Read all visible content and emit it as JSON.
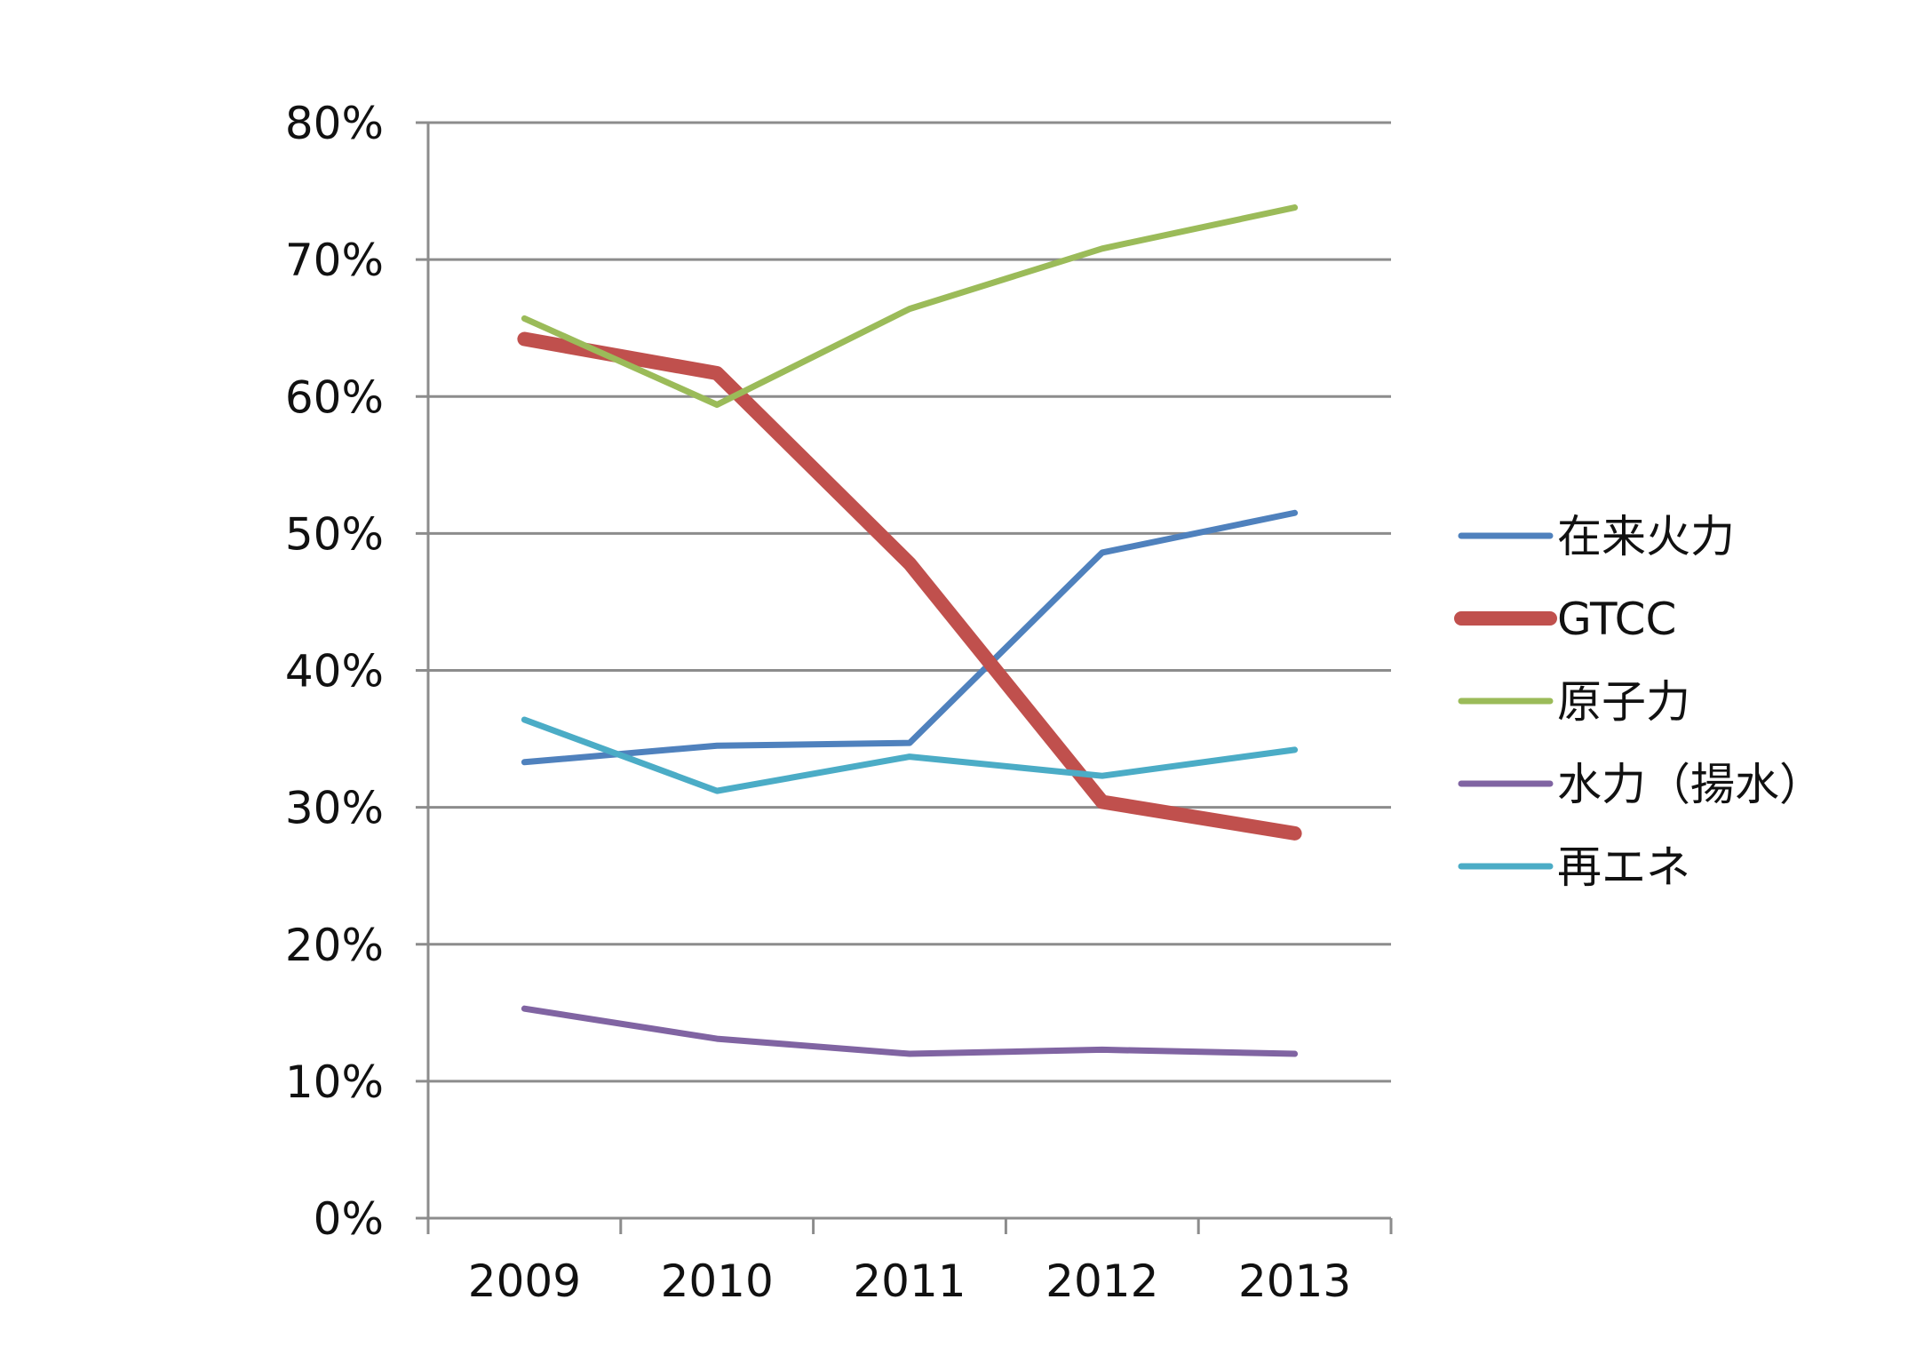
{
  "chart_data": {
    "type": "line",
    "categories": [
      "2009",
      "2010",
      "2011",
      "2012",
      "2013"
    ],
    "ylim": [
      0,
      80
    ],
    "yticks": [
      0,
      10,
      20,
      30,
      40,
      50,
      60,
      70,
      80
    ],
    "ytick_labels": [
      "0%",
      "10%",
      "20%",
      "30%",
      "40%",
      "50%",
      "60%",
      "70%",
      "80%"
    ],
    "grid": true,
    "legend_position": "right",
    "title": "",
    "xlabel": "",
    "ylabel": "",
    "series": [
      {
        "name": "在来火力",
        "color": "#4F81BD",
        "values": [
          33.3,
          34.5,
          34.7,
          48.6,
          51.5
        ]
      },
      {
        "name": "GTCC",
        "color": "#C0504D",
        "values": [
          64.2,
          61.7,
          47.8,
          30.4,
          28.1
        ]
      },
      {
        "name": "原子力",
        "color": "#9BBB59",
        "values": [
          65.7,
          59.4,
          66.4,
          70.8,
          73.8
        ]
      },
      {
        "name": "水力（揚水）",
        "color": "#8064A2",
        "values": [
          15.3,
          13.1,
          12.0,
          12.3,
          12.0
        ]
      },
      {
        "name": "再エネ",
        "color": "#4BACC6",
        "values": [
          36.4,
          31.2,
          33.7,
          32.3,
          34.2
        ]
      }
    ]
  }
}
